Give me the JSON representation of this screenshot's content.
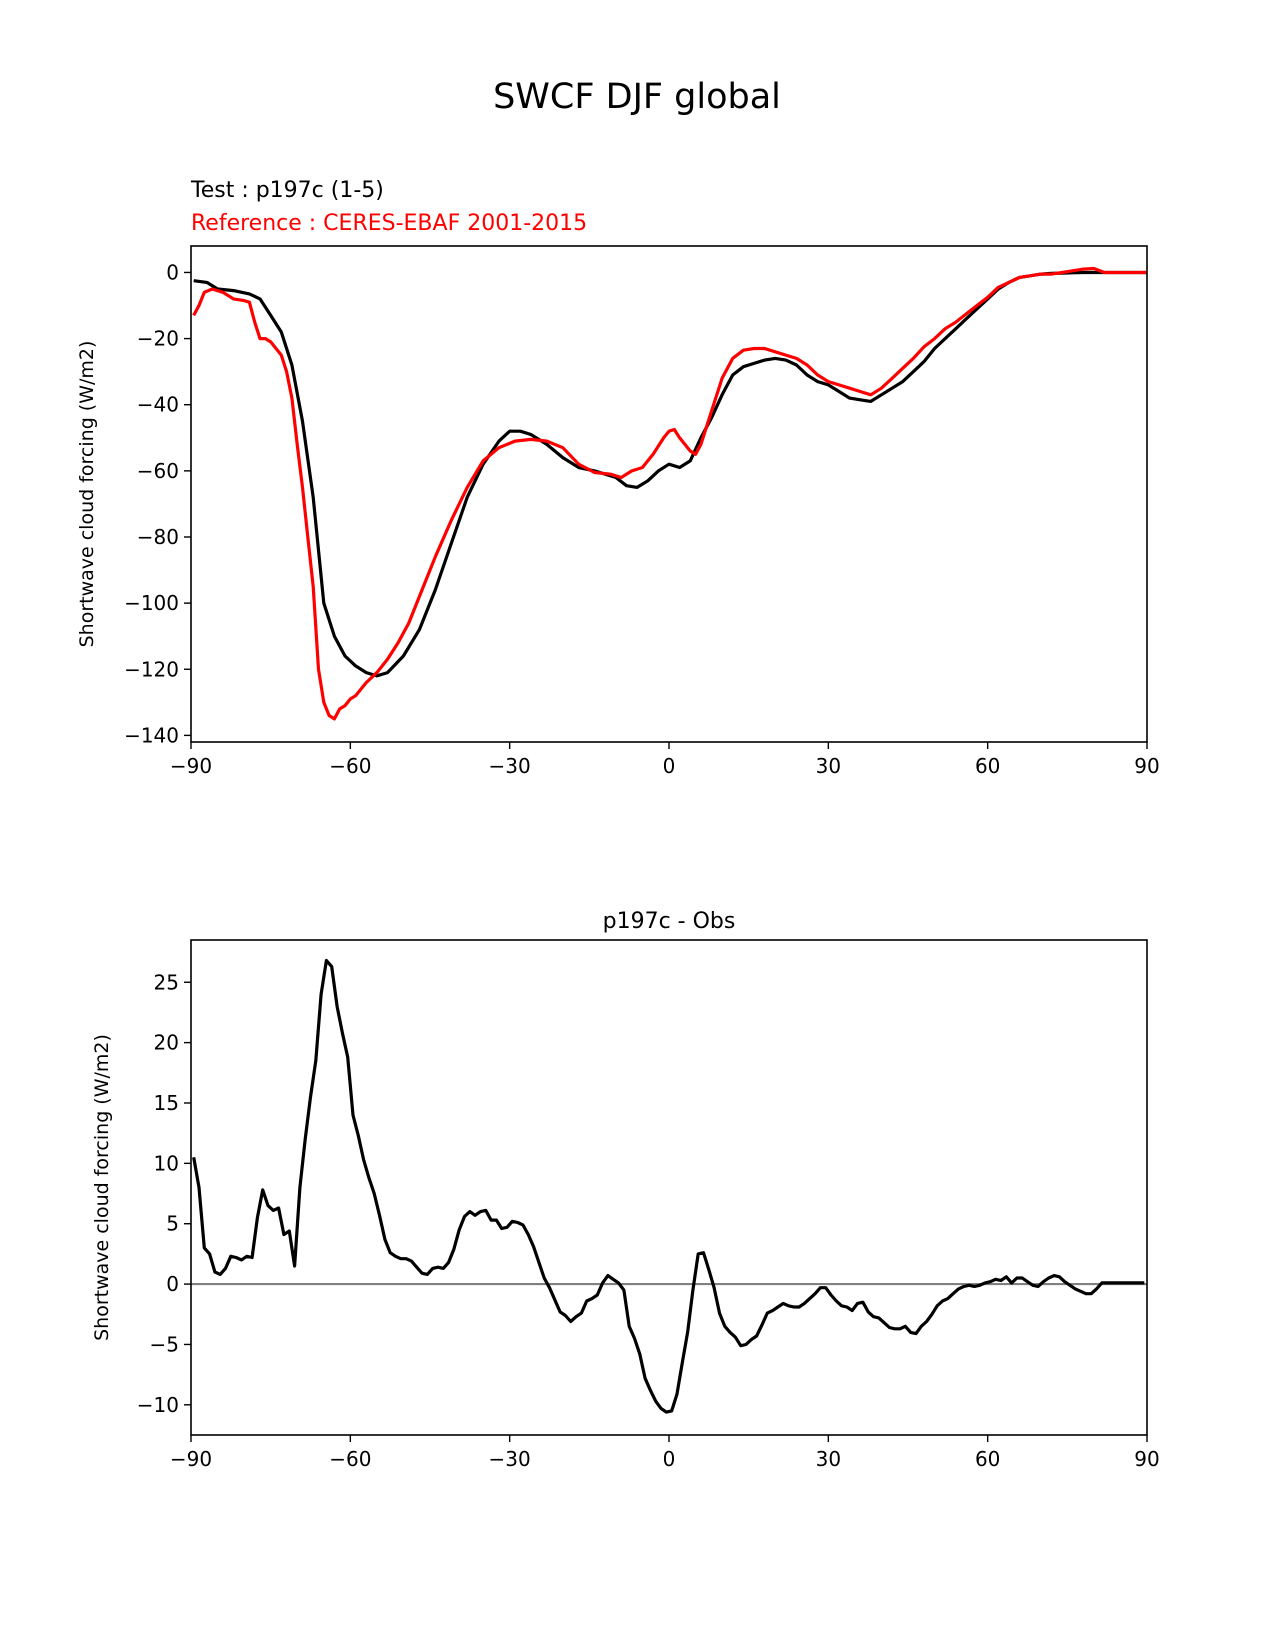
{
  "figure": {
    "title": "SWCF DJF global",
    "test_label": "Test : p197c (1-5)",
    "reference_label": "Reference : CERES-EBAF 2001-2015"
  },
  "chart_data": [
    {
      "type": "line",
      "ylabel": "Shortwave cloud forcing (W/m2)",
      "xlim": [
        -90,
        90
      ],
      "ylim": [
        -142,
        8
      ],
      "xticks": [
        -90,
        -60,
        -30,
        0,
        30,
        60,
        90
      ],
      "xtick_labels": [
        "−90",
        "−60",
        "−30",
        "0",
        "30",
        "60",
        "90"
      ],
      "yticks": [
        0,
        -20,
        -40,
        -60,
        -80,
        -100,
        -120,
        -140
      ],
      "ytick_labels": [
        "0",
        "−20",
        "−40",
        "−60",
        "−80",
        "−100",
        "−120",
        "−140"
      ],
      "grid": false,
      "series": [
        {
          "name": "Test : p197c (1-5)",
          "color": "#000000",
          "x": [
            -89.5,
            -87,
            -85,
            -82,
            -79,
            -77,
            -75,
            -73,
            -71,
            -69,
            -67,
            -65,
            -63,
            -61,
            -59,
            -57,
            -55,
            -53,
            -50,
            -47,
            -44,
            -41,
            -38,
            -35,
            -32,
            -30,
            -28,
            -26,
            -23,
            -20,
            -17,
            -14,
            -12,
            -10,
            -8,
            -6,
            -4,
            -2,
            0,
            2,
            4,
            6,
            8,
            10,
            12,
            14,
            16,
            18,
            20,
            22,
            24,
            26,
            28,
            30,
            32,
            34,
            36,
            38,
            40,
            42,
            44,
            46,
            48,
            50,
            52,
            54,
            56,
            58,
            60,
            62,
            64,
            66,
            68,
            70,
            72,
            74,
            76,
            78,
            80,
            82,
            85,
            88,
            90
          ],
          "y": [
            -2.5,
            -3,
            -5,
            -5.5,
            -6.5,
            -8,
            -13,
            -18,
            -28,
            -45,
            -68,
            -100,
            -110,
            -116,
            -119,
            -121,
            -122,
            -121,
            -116,
            -108,
            -96,
            -82,
            -68,
            -58,
            -51,
            -48,
            -48,
            -49,
            -52,
            -56,
            -59,
            -60,
            -61,
            -62,
            -64.5,
            -65,
            -63,
            -60,
            -58,
            -59,
            -57,
            -50,
            -44,
            -37,
            -31,
            -28.5,
            -27.5,
            -26.5,
            -26,
            -26.5,
            -28,
            -31,
            -33,
            -34,
            -36,
            -38,
            -38.5,
            -39,
            -37,
            -35,
            -33,
            -30,
            -27,
            -23,
            -20,
            -17,
            -14,
            -11,
            -8,
            -5,
            -3,
            -1.5,
            -1,
            -0.5,
            -0.3,
            -0.2,
            -0.1,
            0,
            0,
            0,
            0,
            0,
            0
          ]
        },
        {
          "name": "Reference : CERES-EBAF 2001-2015",
          "color": "#ff0000",
          "x": [
            -89.5,
            -88.5,
            -87.5,
            -86,
            -84,
            -82,
            -80,
            -79,
            -78,
            -77,
            -76,
            -75,
            -74,
            -73,
            -72,
            -71,
            -70,
            -69,
            -68,
            -67,
            -66,
            -65,
            -64,
            -63,
            -62,
            -61,
            -60,
            -59,
            -57,
            -55,
            -53,
            -51,
            -49,
            -47,
            -44,
            -41,
            -38,
            -35,
            -32,
            -29,
            -26,
            -23,
            -20,
            -17,
            -14,
            -11,
            -9,
            -7,
            -5,
            -3,
            -1,
            0,
            1,
            2,
            4,
            5,
            6,
            8,
            10,
            12,
            14,
            16,
            18,
            20,
            22,
            24,
            26,
            28,
            30,
            32,
            34,
            36,
            38,
            40,
            42,
            44,
            46,
            48,
            50,
            52,
            54,
            56,
            58,
            60,
            62,
            64,
            66,
            68,
            70,
            72,
            74,
            76,
            78,
            80,
            82,
            85,
            90
          ],
          "y": [
            -13,
            -10,
            -6,
            -5,
            -6,
            -8,
            -8.5,
            -9,
            -15,
            -20,
            -20,
            -21,
            -23,
            -25,
            -30,
            -38,
            -52,
            -65,
            -80,
            -95,
            -120,
            -130,
            -134,
            -135,
            -132,
            -131,
            -129,
            -128,
            -124,
            -121,
            -117,
            -112,
            -106,
            -98,
            -86,
            -75,
            -65,
            -57,
            -53,
            -51,
            -50.5,
            -51,
            -53,
            -58,
            -60.5,
            -61,
            -62,
            -60,
            -59,
            -55,
            -50,
            -48,
            -47.5,
            -50,
            -54,
            -55,
            -52,
            -42,
            -32,
            -26,
            -23.5,
            -23,
            -23,
            -24,
            -25,
            -26,
            -28,
            -31,
            -33,
            -34,
            -35,
            -36,
            -37,
            -35,
            -32,
            -29,
            -26,
            -22.5,
            -20,
            -17,
            -15,
            -12.5,
            -10,
            -7.5,
            -4.5,
            -3,
            -1.5,
            -1,
            -0.5,
            -0.5,
            0,
            0.5,
            1,
            1.2,
            0,
            0,
            0
          ]
        }
      ]
    },
    {
      "type": "line",
      "title": "p197c - Obs",
      "ylabel": "Shortwave cloud forcing (W/m2)",
      "xlim": [
        -90,
        90
      ],
      "ylim": [
        -12.5,
        28.5
      ],
      "xticks": [
        -90,
        -60,
        -30,
        0,
        30,
        60,
        90
      ],
      "xtick_labels": [
        "−90",
        "−60",
        "−30",
        "0",
        "30",
        "60",
        "90"
      ],
      "yticks": [
        25,
        20,
        15,
        10,
        5,
        0,
        -5,
        -10
      ],
      "ytick_labels": [
        "25",
        "20",
        "15",
        "10",
        "5",
        "0",
        "−5",
        "−10"
      ],
      "zero_line_color": "#808080",
      "grid": false,
      "series": [
        {
          "color": "#000000",
          "x": [
            -89.5,
            -88.5,
            -87.5,
            -86.5,
            -85.5,
            -84.5,
            -83.5,
            -82.5,
            -81.5,
            -80.5,
            -79.5,
            -78.5,
            -77.5,
            -76.5,
            -75.5,
            -74.5,
            -73.5,
            -72.5,
            -71.5,
            -70.5,
            -69.5,
            -68.5,
            -67.5,
            -66.5,
            -65.5,
            -64.5,
            -63.5,
            -62.5,
            -61.5,
            -60.5,
            -59.5,
            -58.5,
            -57.5,
            -56.5,
            -55.5,
            -54.5,
            -53.5,
            -52.5,
            -51.5,
            -50.5,
            -49.5,
            -48.5,
            -47.5,
            -46.5,
            -45.5,
            -44.5,
            -43.5,
            -42.5,
            -41.5,
            -40.5,
            -39.5,
            -38.5,
            -37.5,
            -36.5,
            -35.5,
            -34.5,
            -33.5,
            -32.5,
            -31.5,
            -30.5,
            -29.5,
            -28.5,
            -27.5,
            -26.5,
            -25.5,
            -24.5,
            -23.5,
            -22.5,
            -21.5,
            -20.5,
            -19.5,
            -18.5,
            -17.5,
            -16.5,
            -15.5,
            -14.5,
            -13.5,
            -12.5,
            -11.5,
            -10.5,
            -9.5,
            -8.5,
            -7.5,
            -6.5,
            -5.5,
            -4.5,
            -3.5,
            -2.5,
            -1.5,
            -0.5,
            0.5,
            1.5,
            2.5,
            3.5,
            4.5,
            5.5,
            6.5,
            7.5,
            8.5,
            9.5,
            10.5,
            11.5,
            12.5,
            13.5,
            14.5,
            15.5,
            16.5,
            17.5,
            18.5,
            19.5,
            20.5,
            21.5,
            22.5,
            23.5,
            24.5,
            25.5,
            26.5,
            27.5,
            28.5,
            29.5,
            30.5,
            31.5,
            32.5,
            33.5,
            34.5,
            35.5,
            36.5,
            37.5,
            38.5,
            39.5,
            40.5,
            41.5,
            42.5,
            43.5,
            44.5,
            45.5,
            46.5,
            47.5,
            48.5,
            49.5,
            50.5,
            51.5,
            52.5,
            53.5,
            54.5,
            55.5,
            56.5,
            57.5,
            58.5,
            59.5,
            60.5,
            61.5,
            62.5,
            63.5,
            64.5,
            65.5,
            66.5,
            67.5,
            68.5,
            69.5,
            70.5,
            71.5,
            72.5,
            73.5,
            74.5,
            75.5,
            76.5,
            77.5,
            78.5,
            79.5,
            80.5,
            81.5,
            83,
            85,
            87,
            89.5
          ],
          "y": [
            10.5,
            8,
            3,
            2.5,
            1,
            0.8,
            1.3,
            2.3,
            2.2,
            2,
            2.3,
            2.2,
            5.5,
            7.8,
            6.5,
            6.1,
            6.3,
            4.1,
            4.4,
            1.5,
            8,
            12,
            15.5,
            18.5,
            24,
            26.8,
            26.3,
            23,
            20.8,
            18.8,
            14,
            12.3,
            10.3,
            8.8,
            7.5,
            5.7,
            3.7,
            2.6,
            2.3,
            2.1,
            2.1,
            1.9,
            1.4,
            0.9,
            0.8,
            1.3,
            1.4,
            1.3,
            1.8,
            2.9,
            4.5,
            5.6,
            6,
            5.7,
            6,
            6.1,
            5.3,
            5.3,
            4.6,
            4.7,
            5.2,
            5.1,
            4.9,
            4.1,
            3.1,
            1.8,
            0.5,
            -0.3,
            -1.3,
            -2.3,
            -2.6,
            -3.1,
            -2.7,
            -2.4,
            -1.4,
            -1.2,
            -0.9,
            0.1,
            0.7,
            0.4,
            0.1,
            -0.5,
            -3.5,
            -4.5,
            -5.8,
            -7.8,
            -8.8,
            -9.7,
            -10.3,
            -10.6,
            -10.5,
            -9.1,
            -6.5,
            -4,
            -0.5,
            2.5,
            2.6,
            1.2,
            -0.3,
            -2.4,
            -3.5,
            -4,
            -4.4,
            -5.1,
            -5,
            -4.6,
            -4.3,
            -3.4,
            -2.4,
            -2.2,
            -1.9,
            -1.6,
            -1.8,
            -1.9,
            -1.9,
            -1.6,
            -1.2,
            -0.8,
            -0.3,
            -0.3,
            -0.9,
            -1.4,
            -1.8,
            -1.9,
            -2.2,
            -1.6,
            -1.5,
            -2.3,
            -2.7,
            -2.8,
            -3.2,
            -3.6,
            -3.7,
            -3.7,
            -3.5,
            -4,
            -4.1,
            -3.5,
            -3.1,
            -2.5,
            -1.8,
            -1.4,
            -1.2,
            -0.8,
            -0.4,
            -0.2,
            -0.1,
            -0.2,
            -0.1,
            0.1,
            0.2,
            0.4,
            0.3,
            0.6,
            0.1,
            0.5,
            0.5,
            0.2,
            -0.1,
            -0.2,
            0.2,
            0.5,
            0.7,
            0.6,
            0.2,
            -0.1,
            -0.4,
            -0.6,
            -0.8,
            -0.8,
            -0.4,
            0.1,
            0.1,
            0.1,
            0.1,
            0.1
          ]
        }
      ]
    }
  ]
}
